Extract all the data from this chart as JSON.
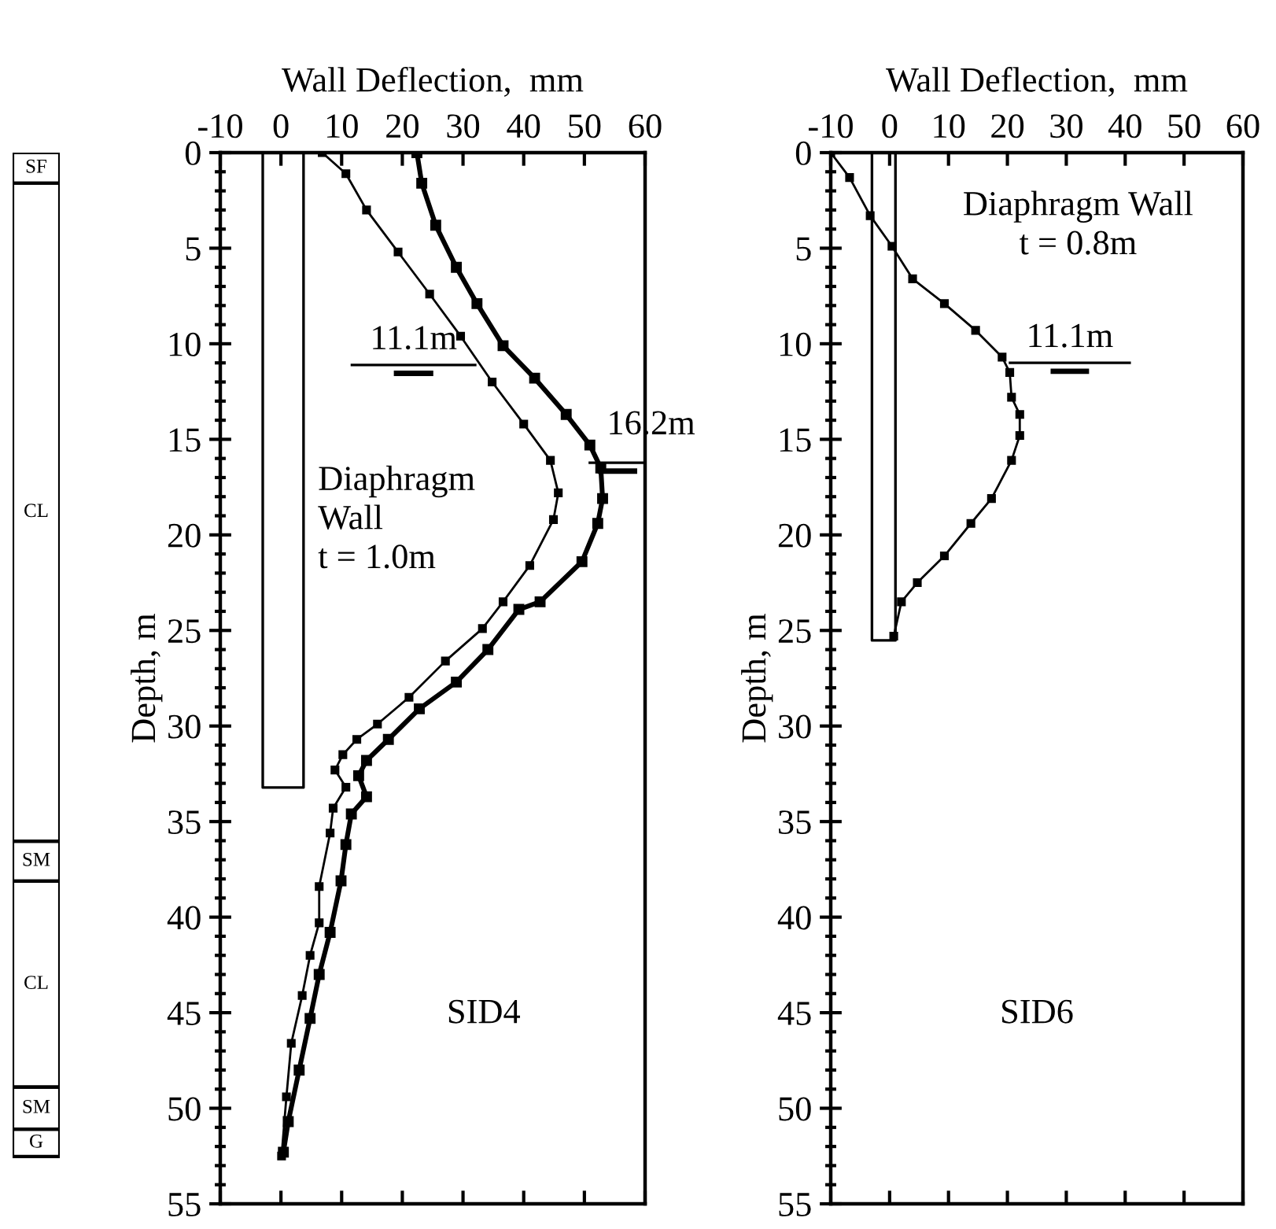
{
  "chart_data": [
    {
      "type": "line",
      "xlabel": "Wall Deflection,  mm",
      "ylabel": "Depth, m",
      "xlim": [
        -10,
        60
      ],
      "xticks": [
        -10,
        0,
        10,
        20,
        30,
        40,
        50,
        60
      ],
      "ylim": [
        55,
        0
      ],
      "yticks": [
        0,
        5,
        10,
        15,
        20,
        25,
        30,
        35,
        40,
        45,
        50,
        55
      ],
      "marker": "square",
      "line_style": "solid",
      "grid": false,
      "legend": false,
      "series": [
        {
          "color": "#000000",
          "x": [
            6.8,
            10.7,
            14.1,
            19.3,
            24.5,
            29.6,
            34.8,
            40,
            44.4,
            45.7,
            44.9,
            41,
            36.6,
            33.2,
            27.1,
            21.1,
            15.9,
            12.5,
            10.2,
            8.9,
            10.7,
            8.6,
            8.1,
            6.3,
            6.3,
            4.8,
            3.5,
            1.7,
            0.9,
            0.1
          ],
          "values": [
            0,
            1.1,
            3,
            5.2,
            7.4,
            9.6,
            12,
            14.2,
            16.1,
            17.8,
            19.2,
            21.6,
            23.5,
            24.9,
            26.6,
            28.5,
            29.9,
            30.7,
            31.5,
            32.3,
            33.2,
            34.3,
            35.6,
            38.4,
            40.3,
            42,
            44.1,
            46.6,
            49.4,
            52.5
          ]
        },
        {
          "color": "#000000",
          "x": [
            22.4,
            23.2,
            25.5,
            28.9,
            32.3,
            36.6,
            41.8,
            47,
            50.9,
            52.7,
            53,
            52.2,
            49.6,
            42.7,
            39.2,
            34.1,
            28.9,
            22.8,
            17.7,
            14.1,
            12.8,
            14.1,
            11.6,
            10.7,
            9.9,
            8.1,
            6.3,
            4.8,
            3,
            1.2,
            0.4
          ],
          "values": [
            0,
            1.6,
            3.8,
            6,
            7.9,
            10.1,
            11.8,
            13.7,
            15.3,
            16.5,
            18.1,
            19.4,
            21.4,
            23.5,
            23.9,
            26,
            27.7,
            29.1,
            30.7,
            31.8,
            32.6,
            33.7,
            34.6,
            36.2,
            38.1,
            40.8,
            43,
            45.3,
            48,
            50.7,
            52.3
          ]
        }
      ],
      "annotations": [
        "11.1m",
        "16.2m",
        "Diaphragm\nWall\nt = 1.0m",
        "SID4",
        "SF",
        "CL",
        "SM",
        "CL",
        "SM",
        "G"
      ]
    },
    {
      "type": "line",
      "xlabel": "Wall Deflection,  mm",
      "ylabel": "Depth, m",
      "xlim": [
        -10,
        60
      ],
      "xticks": [
        -10,
        0,
        10,
        20,
        30,
        40,
        50,
        60
      ],
      "ylim": [
        55,
        0
      ],
      "yticks": [
        0,
        5,
        10,
        15,
        20,
        25,
        30,
        35,
        40,
        45,
        50,
        55
      ],
      "marker": "square",
      "line_style": "solid",
      "grid": false,
      "legend": false,
      "series": [
        {
          "color": "#000000",
          "x": [
            -10,
            -6.8,
            -3.3,
            0.4,
            3.9,
            9.3,
            14.6,
            19.1,
            20.4,
            20.7,
            22.1,
            22.1,
            20.7,
            17.3,
            13.8,
            9.3,
            4.7,
            2,
            0.7
          ],
          "values": [
            0,
            1.3,
            3.3,
            4.9,
            6.6,
            7.9,
            9.3,
            10.7,
            11.5,
            12.8,
            13.7,
            14.8,
            16.1,
            18.1,
            19.4,
            21.1,
            22.5,
            23.5,
            25.3
          ]
        }
      ],
      "annotations": [
        "Diaphragm Wall\nt = 0.8m",
        "11.1m",
        "SID6"
      ]
    }
  ]
}
